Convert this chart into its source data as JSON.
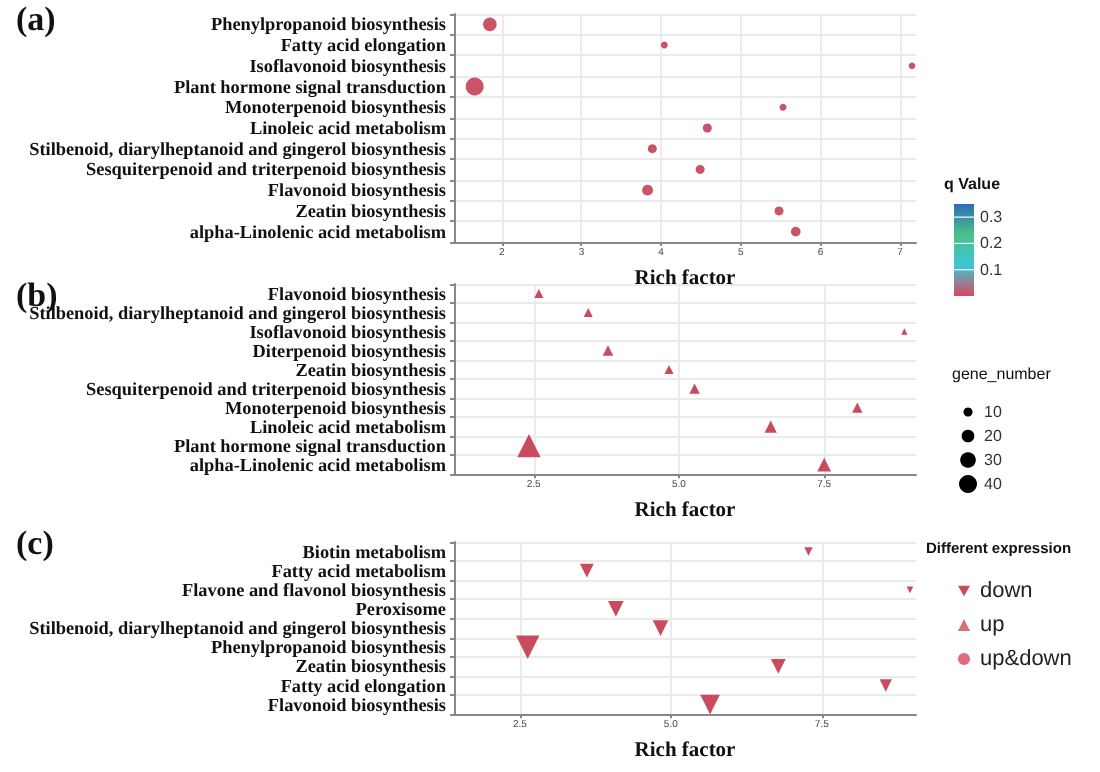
{
  "chart_data": [
    {
      "type": "bubble",
      "orientation": "horizontal",
      "title": "(a)",
      "xlabel": "Rich factor",
      "clabel": "q Value",
      "clim": [
        0,
        0.35
      ],
      "cticks": [
        0.1,
        0.2,
        0.3
      ],
      "categories": [
        "Phenylpropanoid biosynthesis",
        "Fatty acid elongation",
        "Isoflavonoid biosynthesis",
        "Plant hormone signal transduction",
        "Monoterpenoid biosynthesis",
        "Linoleic acid metabolism",
        "Stilbenoid, diarylheptanoid and gingerol biosynthesis",
        "Sesquiterpenoid and triterpenoid biosynthesis",
        "Flavonoid biosynthesis",
        "Zeatin biosynthesis",
        "alpha-Linolenic acid metabolism"
      ],
      "series": [
        {
          "name": "up&down",
          "values": [
            1.85,
            4.04,
            7.15,
            1.66,
            5.53,
            4.58,
            3.89,
            4.49,
            3.83,
            5.48,
            5.69
          ],
          "sizes": [
            0.57,
            0.15,
            0.14,
            1,
            0.15,
            0.25,
            0.25,
            0.25,
            0.36,
            0.25,
            0.29
          ],
          "cvalues": [
            0.01,
            0.01,
            0.01,
            0.01,
            0.01,
            0.01,
            0.01,
            0.01,
            0.01,
            0.01,
            0.01
          ]
        }
      ],
      "xlim": [
        1.4,
        7.2
      ],
      "xticks": [
        2,
        3,
        4,
        5,
        6,
        7
      ],
      "marker": "circle",
      "grid": true
    },
    {
      "type": "bubble",
      "orientation": "horizontal",
      "title": "(b)",
      "xlabel": "Rich factor",
      "legend_title": "gene_number",
      "size_legend": [
        10,
        20,
        30,
        40
      ],
      "categories": [
        "Flavonoid biosynthesis",
        "Stilbenoid, diarylheptanoid and gingerol biosynthesis",
        "Isoflavonoid biosynthesis",
        "Diterpenoid biosynthesis",
        "Zeatin biosynthesis",
        "Sesquiterpenoid and triterpenoid biosynthesis",
        "Monoterpenoid biosynthesis",
        "Linoleic acid metabolism",
        "Plant hormone signal transduction",
        "alpha-Linolenic acid metabolism"
      ],
      "series": [
        {
          "name": "up",
          "color": "#c94c5e",
          "values": [
            2.59,
            3.44,
            8.88,
            3.78,
            4.83,
            5.27,
            8.07,
            6.58,
            2.42,
            7.5
          ],
          "sizes": [
            6,
            6,
            3,
            8,
            6,
            8,
            8,
            11,
            40,
            14
          ]
        }
      ],
      "xlim": [
        1.13,
        9.08
      ],
      "xticks": [
        {
          "value": 2.5,
          "label": "2.5"
        },
        {
          "value": 5,
          "label": "5.0"
        },
        {
          "value": 7.5,
          "label": "7.5"
        }
      ],
      "marker": "triangle",
      "grid": true
    },
    {
      "type": "bubble",
      "orientation": "horizontal",
      "title": "(c)",
      "xlabel": "Rich factor",
      "legend_title": "Different expression",
      "legend": "right",
      "categories": [
        "Biotin metabolism",
        "Fatty acid metabolism",
        "Flavone and flavonol biosynthesis",
        "Peroxisome",
        "Stilbenoid, diarylheptanoid and gingerol biosynthesis",
        "Phenylpropanoid biosynthesis",
        "Zeatin biosynthesis",
        "Fatty acid elongation",
        "Flavonoid biosynthesis"
      ],
      "series": [
        {
          "name": "down",
          "color": "#c94c5e",
          "values": [
            7.28,
            3.61,
            8.96,
            4.09,
            4.83,
            2.63,
            6.78,
            8.56,
            5.65
          ],
          "sizes": [
            0.13,
            0.35,
            0.08,
            0.45,
            0.45,
            1,
            0.4,
            0.28,
            0.7
          ]
        }
      ],
      "xlim": [
        1.41,
        9.06
      ],
      "xticks": [
        {
          "value": 2.5,
          "label": "2.5"
        },
        {
          "value": 5,
          "label": "5.0"
        },
        {
          "value": 7.5,
          "label": "7.5"
        }
      ],
      "marker": "triangle-down",
      "grid": true
    }
  ]
}
